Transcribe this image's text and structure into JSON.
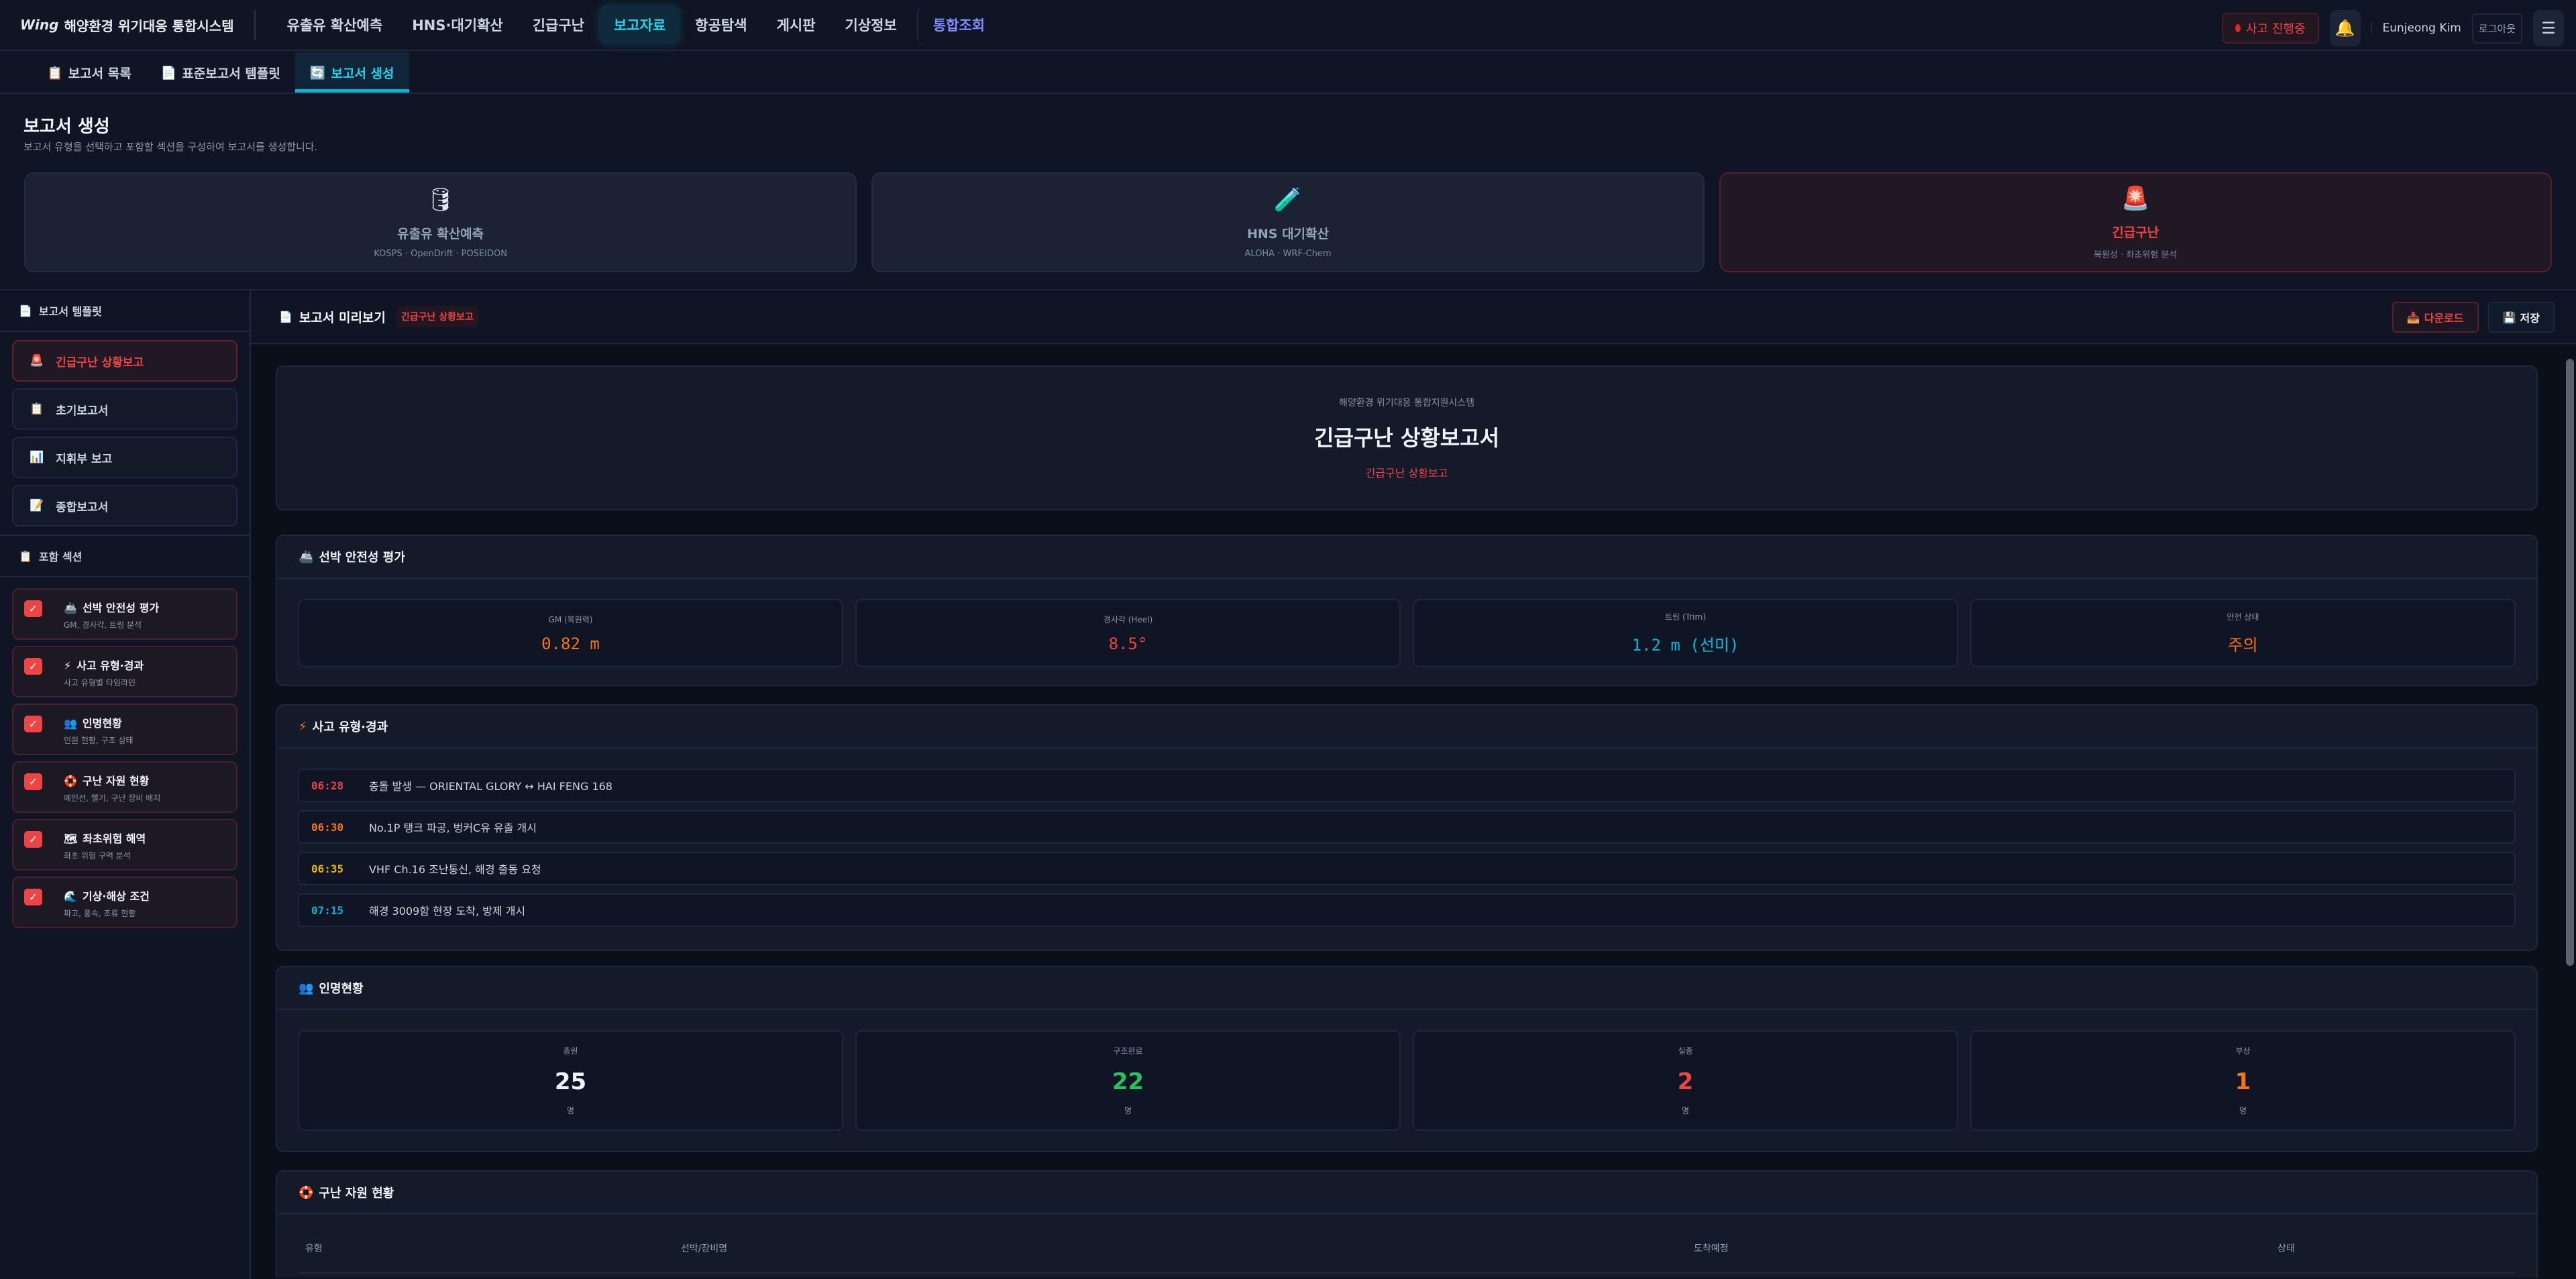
{
  "header": {
    "logo_mark": "Wing",
    "app_title": "해양환경 위기대응 통합시스템",
    "nav": [
      "유출유 확산예측",
      "HNS·대기확산",
      "긴급구난",
      "보고자료",
      "항공탐색",
      "게시판",
      "기상정보",
      "통합조회"
    ],
    "active_nav": "보고자료",
    "alert_label": "사고 진행중",
    "user_name": "Eunjeong Kim",
    "logout_label": "로그아웃"
  },
  "subtabs": [
    {
      "icon": "📋",
      "label": "보고서 목록"
    },
    {
      "icon": "📄",
      "label": "표준보고서 템플릿"
    },
    {
      "icon": "🔄",
      "label": "보고서 생성",
      "active": true
    }
  ],
  "page": {
    "title": "보고서 생성",
    "subtitle": "보고서 유형을 선택하고 포함할 섹션을 구성하여 보고서를 생성합니다."
  },
  "report_types": [
    {
      "icon": "🛢",
      "name": "유출유 확산예측",
      "desc": "KOSPS · OpenDrift · POSEIDON"
    },
    {
      "icon": "🧪",
      "name": "HNS 대기확산",
      "desc": "ALOHA · WRF-Chem"
    },
    {
      "icon": "🚨",
      "name": "긴급구난",
      "desc": "복원성 · 좌초위험 분석",
      "active": true
    }
  ],
  "sidebar": {
    "templates_title": "보고서 템플릿",
    "templates": [
      {
        "icon": "🚨",
        "label": "긴급구난 상황보고",
        "active": true
      },
      {
        "icon": "📋",
        "label": "초기보고서"
      },
      {
        "icon": "📊",
        "label": "지휘부 보고"
      },
      {
        "icon": "📝",
        "label": "종합보고서"
      }
    ],
    "sections_title": "포함 섹션",
    "sections": [
      {
        "icon": "🚢",
        "title": "선박 안전성 평가",
        "desc": "GM, 경사각, 트림 분석",
        "checked": true
      },
      {
        "icon": "⚡",
        "title": "사고 유형·경과",
        "desc": "사고 유형별 타임라인",
        "checked": true
      },
      {
        "icon": "👥",
        "title": "인명현황",
        "desc": "인원 현황, 구조 상태",
        "checked": true
      },
      {
        "icon": "🛟",
        "title": "구난 자원 현황",
        "desc": "예인선, 헬기, 구난 장비 배치",
        "checked": true
      },
      {
        "icon": "🗺",
        "title": "좌초위험 해역",
        "desc": "좌초 위험 구역 분석",
        "checked": true
      },
      {
        "icon": "🌊",
        "title": "기상·해상 조건",
        "desc": "파고, 풍속, 조류 현황",
        "checked": true
      }
    ]
  },
  "preview": {
    "title": "보고서 미리보기",
    "badge": "긴급구난 상황보고",
    "download_label": "다운로드",
    "save_label": "저장",
    "cover": {
      "org": "해양환경 위기대응 통합지원시스템",
      "title": "긴급구난 상황보고서",
      "subtitle": "긴급구난 상황보고"
    },
    "stability": {
      "title": "선박 안전성 평가",
      "items": [
        {
          "label": "GM (복원력)",
          "value": "0.82 m",
          "color": "#f97316"
        },
        {
          "label": "경사각 (Heel)",
          "value": "8.5°",
          "color": "#ef4444"
        },
        {
          "label": "트림 (Trim)",
          "value": "1.2 m (선미)",
          "color": "#06b6d4"
        },
        {
          "label": "안전 상태",
          "value": "주의",
          "color": "#f97316"
        }
      ]
    },
    "timeline": {
      "title": "사고 유형·경과",
      "rows": [
        {
          "time": "06:28",
          "text": "충돌 발생 — ORIENTAL GLORY ↔ HAI FENG 168",
          "color": "#ef4444"
        },
        {
          "time": "06:30",
          "text": "No.1P 탱크 파공, 벙커C유 유출 개시",
          "color": "#f97316"
        },
        {
          "time": "06:35",
          "text": "VHF Ch.16 조난통신, 해경 출동 요청",
          "color": "#eab308"
        },
        {
          "time": "07:15",
          "text": "해경 3009함 현장 도착, 방제 개시",
          "color": "#06b6d4"
        }
      ]
    },
    "people": {
      "title": "인명현황",
      "items": [
        {
          "label": "총원",
          "value": "25",
          "unit": "명",
          "color": "#f1f5f9"
        },
        {
          "label": "구조완료",
          "value": "22",
          "unit": "명",
          "color": "#22c55e"
        },
        {
          "label": "실종",
          "value": "2",
          "unit": "명",
          "color": "#ef4444"
        },
        {
          "label": "부상",
          "value": "1",
          "unit": "명",
          "color": "#f97316"
        }
      ]
    },
    "resources": {
      "title": "구난 자원 현황",
      "columns": [
        "유형",
        "선박/장비명",
        "도착예정",
        "상태"
      ]
    }
  }
}
